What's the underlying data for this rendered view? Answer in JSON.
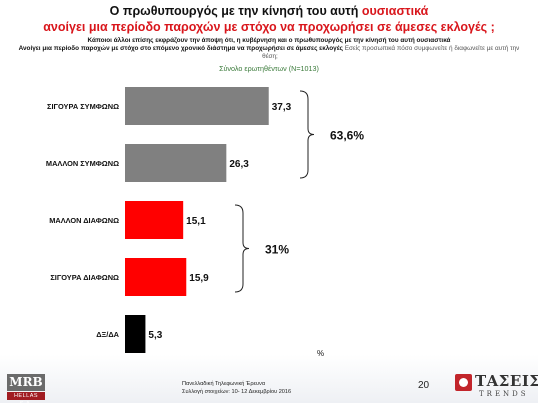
{
  "header": {
    "title_line1": "Ο πρωθυπουργός με την κίνησή του αυτή ",
    "title_line1_hl": "ουσιαστικά",
    "title_line2_hl": "ανοίγει μια περίοδο παροχών με στόχο να προχωρήσει σε άμεσες εκλογές ;",
    "subtitle_line1": "Κάποιοι άλλοι επίσης εκφράζουν την άποψη ότι, η κυβέρνηση και ο πρωθυπουργός με την κίνησή του αυτή ουσιαστικά",
    "subtitle_line2a": "Ανοίγει μια περίοδο παροχών με στόχο στο επόμενο χρονικό διάστημα να προχωρήσει σε άμεσες εκλογές",
    "subtitle_line2b": "Εσείς προσωπικά πόσο συμφωνείτε ή διαφωνείτε με αυτή την",
    "subtitle_line2c": "θέση;",
    "base": "Σύνολο ερωτηθέντων (Ν=1013)"
  },
  "chart_data": {
    "type": "bar",
    "orientation": "horizontal",
    "categories": [
      "ΣΙΓΟΥΡΑ ΣΥΜΦΩΝΩ",
      "ΜΑΛΛΟΝ ΣΥΜΦΩΝΩ",
      "ΜΑΛΛΟΝ ΔΙΑΦΩΝΩ",
      "ΣΙΓΟΥΡΑ ΔΙΑΦΩΝΩ",
      "ΔΞ/ΔΑ"
    ],
    "values": [
      37.3,
      26.3,
      15.1,
      15.9,
      5.3
    ],
    "value_labels": [
      "37,3",
      "26,3",
      "15,1",
      "15,9",
      "5,3"
    ],
    "colors": [
      "#808080",
      "#808080",
      "#ff0000",
      "#ff0000",
      "#000000"
    ],
    "xlim": [
      0,
      75
    ],
    "unit_label": "%",
    "groups": [
      {
        "label": "63,6%",
        "from": 0,
        "to": 1
      },
      {
        "label": "31%",
        "from": 2,
        "to": 3
      }
    ]
  },
  "footer": {
    "line1": "Πανελλαδική Τηλεφωνική Έρευνα",
    "line2": "Συλλογή στοιχείων: 10- 12 Δεκεμβρίου 2016",
    "page_number": "20",
    "logo_left_top": "MRB",
    "logo_left_bottom": "HELLAS S.A.",
    "logo_right_name": "ΤΑΣΕΙΣ",
    "logo_right_sub": "TRENDS"
  },
  "colors": {
    "accent_red": "#d9161c",
    "bar_grey": "#808080",
    "bar_red": "#ff0000",
    "bar_black": "#000000"
  }
}
